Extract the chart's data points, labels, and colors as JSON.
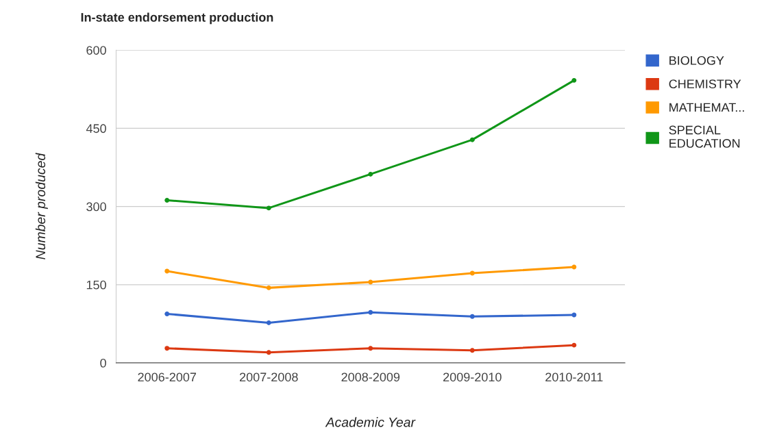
{
  "chart_data": {
    "type": "line",
    "title": "In-state endorsement production",
    "xlabel": "Academic Year",
    "ylabel": "Number produced",
    "categories": [
      "2006-2007",
      "2007-2008",
      "2008-2009",
      "2009-2010",
      "2010-2011"
    ],
    "series": [
      {
        "name": "BIOLOGY",
        "color": "#3366cc",
        "values": [
          94,
          77,
          97,
          89,
          92
        ]
      },
      {
        "name": "CHEMISTRY",
        "color": "#dc3912",
        "values": [
          28,
          20,
          28,
          24,
          34
        ]
      },
      {
        "name": "MATHEMAT...",
        "color": "#ff9900",
        "values": [
          176,
          144,
          155,
          172,
          184
        ]
      },
      {
        "name": "SPECIAL EDUCATION",
        "color": "#109618",
        "values": [
          312,
          297,
          362,
          428,
          542
        ]
      }
    ],
    "ylim": [
      0,
      600
    ],
    "yticks": [
      0,
      150,
      300,
      450,
      600
    ],
    "grid": "y",
    "legend": "right",
    "marker": "circle",
    "line_style": "solid"
  }
}
